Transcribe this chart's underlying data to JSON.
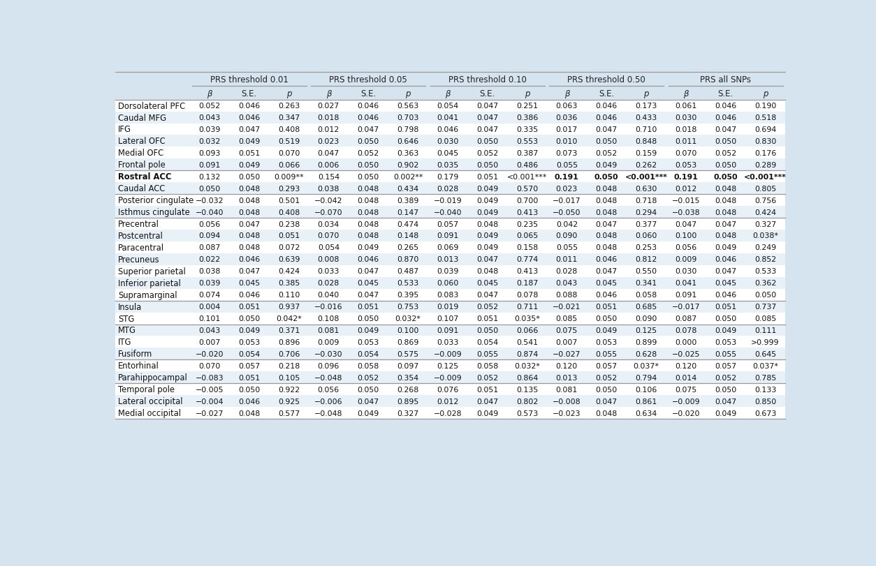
{
  "background_color": "#d6e4f0",
  "row_colors": [
    "#ffffff",
    "#e8f0f8"
  ],
  "header_text_color": "#222222",
  "cell_text_color": "#111111",
  "line_color": "#999999",
  "subheaders": [
    "β",
    "S.E.",
    "p",
    "β",
    "S.E.",
    "p",
    "β",
    "S.E.",
    "p",
    "β",
    "S.E.",
    "p",
    "β",
    "S.E.",
    "p"
  ],
  "group_labels": [
    "PRS threshold 0.01",
    "PRS threshold 0.05",
    "PRS threshold 0.10",
    "PRS threshold 0.50",
    "PRS all SNPs"
  ],
  "rows": [
    {
      "label": "Dorsolateral PFC",
      "values": [
        "0.052",
        "0.046",
        "0.263",
        "0.027",
        "0.046",
        "0.563",
        "0.054",
        "0.047",
        "0.251",
        "0.063",
        "0.046",
        "0.173",
        "0.061",
        "0.046",
        "0.190"
      ],
      "bold_vals": [],
      "bold_row": false
    },
    {
      "label": "Caudal MFG",
      "values": [
        "0.043",
        "0.046",
        "0.347",
        "0.018",
        "0.046",
        "0.703",
        "0.041",
        "0.047",
        "0.386",
        "0.036",
        "0.046",
        "0.433",
        "0.030",
        "0.046",
        "0.518"
      ],
      "bold_vals": [],
      "bold_row": false
    },
    {
      "label": "IFG",
      "values": [
        "0.039",
        "0.047",
        "0.408",
        "0.012",
        "0.047",
        "0.798",
        "0.046",
        "0.047",
        "0.335",
        "0.017",
        "0.047",
        "0.710",
        "0.018",
        "0.047",
        "0.694"
      ],
      "bold_vals": [],
      "bold_row": false
    },
    {
      "label": "Lateral OFC",
      "values": [
        "0.032",
        "0.049",
        "0.519",
        "0.023",
        "0.050",
        "0.646",
        "0.030",
        "0.050",
        "0.553",
        "0.010",
        "0.050",
        "0.848",
        "0.011",
        "0.050",
        "0.830"
      ],
      "bold_vals": [],
      "bold_row": false
    },
    {
      "label": "Medial OFC",
      "values": [
        "0.093",
        "0.051",
        "0.070",
        "0.047",
        "0.052",
        "0.363",
        "0.045",
        "0.052",
        "0.387",
        "0.073",
        "0.052",
        "0.159",
        "0.070",
        "0.052",
        "0.176"
      ],
      "bold_vals": [],
      "bold_row": false
    },
    {
      "label": "Frontal pole",
      "values": [
        "0.091",
        "0.049",
        "0.066",
        "0.006",
        "0.050",
        "0.902",
        "0.035",
        "0.050",
        "0.486",
        "0.055",
        "0.049",
        "0.262",
        "0.053",
        "0.050",
        "0.289"
      ],
      "bold_vals": [],
      "bold_row": false
    },
    {
      "label": "Rostral ACC",
      "values": [
        "0.132",
        "0.050",
        "0.009**",
        "0.154",
        "0.050",
        "0.002**",
        "0.179",
        "0.051",
        "<0.001***",
        "0.191",
        "0.050",
        "<0.001***",
        "0.191",
        "0.050",
        "<0.001***"
      ],
      "bold_vals": [
        9,
        10,
        11,
        12,
        13,
        14
      ],
      "bold_row": true
    },
    {
      "label": "Caudal ACC",
      "values": [
        "0.050",
        "0.048",
        "0.293",
        "0.038",
        "0.048",
        "0.434",
        "0.028",
        "0.049",
        "0.570",
        "0.023",
        "0.048",
        "0.630",
        "0.012",
        "0.048",
        "0.805"
      ],
      "bold_vals": [],
      "bold_row": false
    },
    {
      "label": "Posterior cingulate",
      "values": [
        "−0.032",
        "0.048",
        "0.501",
        "−0.042",
        "0.048",
        "0.389",
        "−0.019",
        "0.049",
        "0.700",
        "−0.017",
        "0.048",
        "0.718",
        "−0.015",
        "0.048",
        "0.756"
      ],
      "bold_vals": [],
      "bold_row": false
    },
    {
      "label": "Isthmus cingulate",
      "values": [
        "−0.040",
        "0.048",
        "0.408",
        "−0.070",
        "0.048",
        "0.147",
        "−0.040",
        "0.049",
        "0.413",
        "−0.050",
        "0.048",
        "0.294",
        "−0.038",
        "0.048",
        "0.424"
      ],
      "bold_vals": [],
      "bold_row": false
    },
    {
      "label": "Precentral",
      "values": [
        "0.056",
        "0.047",
        "0.238",
        "0.034",
        "0.048",
        "0.474",
        "0.057",
        "0.048",
        "0.235",
        "0.042",
        "0.047",
        "0.377",
        "0.047",
        "0.047",
        "0.327"
      ],
      "bold_vals": [],
      "bold_row": false
    },
    {
      "label": "Postcentral",
      "values": [
        "0.094",
        "0.048",
        "0.051",
        "0.070",
        "0.048",
        "0.148",
        "0.091",
        "0.049",
        "0.065",
        "0.090",
        "0.048",
        "0.060",
        "0.100",
        "0.048",
        "0.038*"
      ],
      "bold_vals": [],
      "bold_row": false
    },
    {
      "label": "Paracentral",
      "values": [
        "0.087",
        "0.048",
        "0.072",
        "0.054",
        "0.049",
        "0.265",
        "0.069",
        "0.049",
        "0.158",
        "0.055",
        "0.048",
        "0.253",
        "0.056",
        "0.049",
        "0.249"
      ],
      "bold_vals": [],
      "bold_row": false
    },
    {
      "label": "Precuneus",
      "values": [
        "0.022",
        "0.046",
        "0.639",
        "0.008",
        "0.046",
        "0.870",
        "0.013",
        "0.047",
        "0.774",
        "0.011",
        "0.046",
        "0.812",
        "0.009",
        "0.046",
        "0.852"
      ],
      "bold_vals": [],
      "bold_row": false
    },
    {
      "label": "Superior parietal",
      "values": [
        "0.038",
        "0.047",
        "0.424",
        "0.033",
        "0.047",
        "0.487",
        "0.039",
        "0.048",
        "0.413",
        "0.028",
        "0.047",
        "0.550",
        "0.030",
        "0.047",
        "0.533"
      ],
      "bold_vals": [],
      "bold_row": false
    },
    {
      "label": "Inferior parietal",
      "values": [
        "0.039",
        "0.045",
        "0.385",
        "0.028",
        "0.045",
        "0.533",
        "0.060",
        "0.045",
        "0.187",
        "0.043",
        "0.045",
        "0.341",
        "0.041",
        "0.045",
        "0.362"
      ],
      "bold_vals": [],
      "bold_row": false
    },
    {
      "label": "Supramarginal",
      "values": [
        "0.074",
        "0.046",
        "0.110",
        "0.040",
        "0.047",
        "0.395",
        "0.083",
        "0.047",
        "0.078",
        "0.088",
        "0.046",
        "0.058",
        "0.091",
        "0.046",
        "0.050"
      ],
      "bold_vals": [],
      "bold_row": false
    },
    {
      "label": "Insula",
      "values": [
        "0.004",
        "0.051",
        "0.937",
        "−0.016",
        "0.051",
        "0.753",
        "0.019",
        "0.052",
        "0.711",
        "−0.021",
        "0.051",
        "0.685",
        "−0.017",
        "0.051",
        "0.737"
      ],
      "bold_vals": [],
      "bold_row": false
    },
    {
      "label": "STG",
      "values": [
        "0.101",
        "0.050",
        "0.042*",
        "0.108",
        "0.050",
        "0.032*",
        "0.107",
        "0.051",
        "0.035*",
        "0.085",
        "0.050",
        "0.090",
        "0.087",
        "0.050",
        "0.085"
      ],
      "bold_vals": [],
      "bold_row": false
    },
    {
      "label": "MTG",
      "values": [
        "0.043",
        "0.049",
        "0.371",
        "0.081",
        "0.049",
        "0.100",
        "0.091",
        "0.050",
        "0.066",
        "0.075",
        "0.049",
        "0.125",
        "0.078",
        "0.049",
        "0.111"
      ],
      "bold_vals": [],
      "bold_row": false
    },
    {
      "label": "ITG",
      "values": [
        "0.007",
        "0.053",
        "0.896",
        "0.009",
        "0.053",
        "0.869",
        "0.033",
        "0.054",
        "0.541",
        "0.007",
        "0.053",
        "0.899",
        "0.000",
        "0.053",
        ">0.999"
      ],
      "bold_vals": [],
      "bold_row": false
    },
    {
      "label": "Fusiform",
      "values": [
        "−0.020",
        "0.054",
        "0.706",
        "−0.030",
        "0.054",
        "0.575",
        "−0.009",
        "0.055",
        "0.874",
        "−0.027",
        "0.055",
        "0.628",
        "−0.025",
        "0.055",
        "0.645"
      ],
      "bold_vals": [],
      "bold_row": false
    },
    {
      "label": "Entorhinal",
      "values": [
        "0.070",
        "0.057",
        "0.218",
        "0.096",
        "0.058",
        "0.097",
        "0.125",
        "0.058",
        "0.032*",
        "0.120",
        "0.057",
        "0.037*",
        "0.120",
        "0.057",
        "0.037*"
      ],
      "bold_vals": [],
      "bold_row": false
    },
    {
      "label": "Parahippocampal",
      "values": [
        "−0.083",
        "0.051",
        "0.105",
        "−0.048",
        "0.052",
        "0.354",
        "−0.009",
        "0.052",
        "0.864",
        "0.013",
        "0.052",
        "0.794",
        "0.014",
        "0.052",
        "0.785"
      ],
      "bold_vals": [],
      "bold_row": false
    },
    {
      "label": "Temporal pole",
      "values": [
        "−0.005",
        "0.050",
        "0.922",
        "0.056",
        "0.050",
        "0.268",
        "0.076",
        "0.051",
        "0.135",
        "0.081",
        "0.050",
        "0.106",
        "0.075",
        "0.050",
        "0.133"
      ],
      "bold_vals": [],
      "bold_row": false
    },
    {
      "label": "Lateral occipital",
      "values": [
        "−0.004",
        "0.046",
        "0.925",
        "−0.006",
        "0.047",
        "0.895",
        "0.012",
        "0.047",
        "0.802",
        "−0.008",
        "0.047",
        "0.861",
        "−0.009",
        "0.047",
        "0.850"
      ],
      "bold_vals": [],
      "bold_row": false
    },
    {
      "label": "Medial occipital",
      "values": [
        "−0.027",
        "0.048",
        "0.577",
        "−0.048",
        "0.049",
        "0.327",
        "−0.028",
        "0.049",
        "0.573",
        "−0.023",
        "0.048",
        "0.634",
        "−0.020",
        "0.049",
        "0.673"
      ],
      "bold_vals": [],
      "bold_row": false
    }
  ],
  "thick_lines_above": [
    6,
    8,
    10,
    17,
    19,
    22,
    24
  ],
  "figwidth": 12.54,
  "figheight": 8.12,
  "dpi": 100
}
